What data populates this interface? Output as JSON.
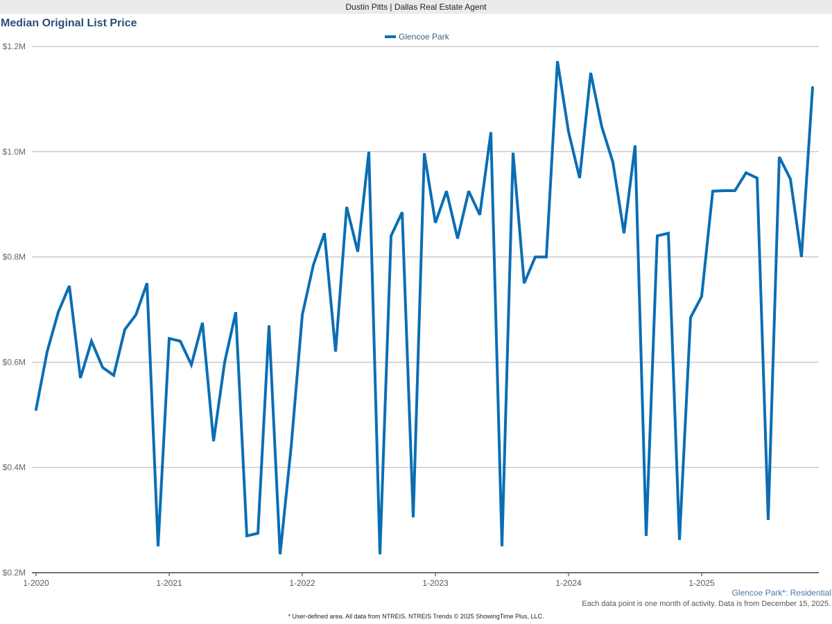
{
  "header": {
    "agent": "Dustin Pitts | Dallas Real Estate Agent"
  },
  "title": "Median Original List Price",
  "legend": {
    "series_name": "Glencoe Park",
    "color": "#0a6eb4"
  },
  "area_label": "Glencoe Park*: Residential",
  "note": "Each data point is one month of activity. Data is from December 15, 2025.",
  "footer": "* User-defined area. All data from NTREIS. NTREIS Trends © 2025 ShowingTime Plus, LLC.",
  "chart_data": {
    "type": "line",
    "title": "Median Original List Price",
    "xlabel": "",
    "ylabel": "",
    "ylim": [
      0.2,
      1.2
    ],
    "y_unit": "$M",
    "y_ticks": [
      "$0.2M",
      "$0.4M",
      "$0.6M",
      "$0.8M",
      "$1.0M",
      "$1.2M"
    ],
    "x_ticks": [
      "1-2020",
      "1-2021",
      "1-2022",
      "1-2023",
      "1-2024",
      "1-2025"
    ],
    "grid": true,
    "legend_position": "top",
    "x_start": "1-2020",
    "x_end": "11-2025",
    "series": [
      {
        "name": "Glencoe Park",
        "color": "#0a6eb4",
        "values": [
          0.51,
          0.62,
          0.695,
          0.745,
          0.57,
          0.64,
          0.59,
          0.575,
          0.662,
          0.69,
          0.75,
          0.25,
          0.645,
          0.64,
          0.595,
          0.675,
          0.45,
          0.6,
          0.695,
          0.27,
          0.275,
          0.67,
          0.235,
          0.44,
          0.69,
          0.785,
          0.845,
          0.62,
          0.895,
          0.81,
          1.0,
          0.235,
          0.84,
          0.885,
          0.305,
          0.997,
          0.865,
          0.925,
          0.835,
          0.925,
          0.88,
          1.037,
          0.25,
          0.998,
          0.75,
          0.8,
          0.8,
          1.172,
          1.038,
          0.95,
          1.15,
          1.047,
          0.98,
          0.845,
          1.012,
          0.27,
          0.84,
          0.845,
          0.262,
          0.685,
          0.725,
          0.925,
          0.926,
          0.926,
          0.96,
          0.95,
          0.3,
          0.99,
          0.948,
          0.8,
          1.122
        ]
      }
    ]
  }
}
